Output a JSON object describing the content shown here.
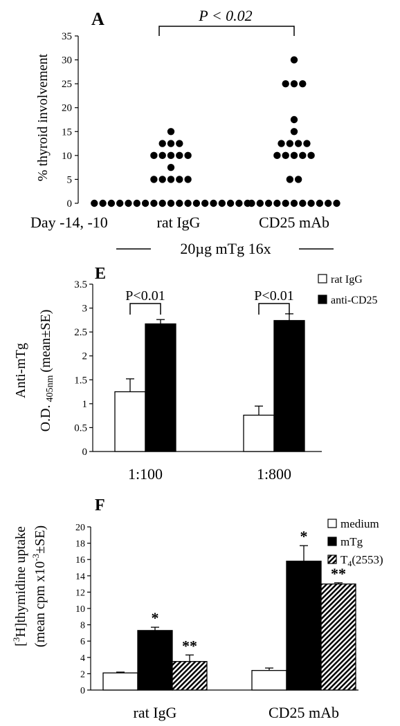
{
  "chart_data": [
    {
      "panel": "A",
      "type": "scatter",
      "ylabel": "% thyroid involvement",
      "ylim": [
        0,
        35
      ],
      "yticks": [
        0,
        5,
        10,
        15,
        20,
        25,
        30,
        35
      ],
      "row_label": "Day -14, -10",
      "categories": [
        "rat IgG",
        "CD25 mAb"
      ],
      "bracket_label": "P < 0.02",
      "treatment_label": "20µg mTg 16x",
      "series": [
        {
          "name": "rat IgG",
          "values": [
            0,
            0,
            0,
            0,
            0,
            0,
            0,
            0,
            0,
            0,
            0,
            0,
            0,
            0,
            0,
            0,
            0,
            0,
            0,
            5,
            5,
            5,
            5,
            5,
            7.5,
            10,
            10,
            10,
            10,
            10,
            12.5,
            12.5,
            12.5,
            15
          ]
        },
        {
          "name": "CD25 mAb",
          "values": [
            0,
            0,
            0,
            0,
            0,
            0,
            0,
            0,
            0,
            0,
            0,
            5,
            5,
            10,
            10,
            10,
            10,
            10,
            12.5,
            12.5,
            12.5,
            12.5,
            15,
            17.5,
            25,
            25,
            25,
            30
          ]
        }
      ]
    },
    {
      "panel": "E",
      "type": "bar",
      "ylabel_line1": "Anti-mTg",
      "ylabel_line2_pre": "O.D.",
      "ylabel_line2_sub": "405nm",
      "ylabel_line2_post": "(mean±SE)",
      "ylim": [
        0,
        3.5
      ],
      "yticks": [
        "0",
        "0.5",
        "1",
        "1.5",
        "2",
        "2.5",
        "3",
        "3.5"
      ],
      "categories": [
        "1:100",
        "1:800"
      ],
      "series": [
        {
          "name": "rat IgG",
          "color": "#ffffff",
          "values": [
            1.25,
            0.76
          ],
          "errors": [
            0.27,
            0.19
          ]
        },
        {
          "name": "anti-CD25",
          "color": "#000000",
          "values": [
            2.67,
            2.74
          ],
          "errors": [
            0.09,
            0.14
          ]
        }
      ],
      "annotations": [
        "P<0.01",
        "P<0.01"
      ],
      "legend": "top-right"
    },
    {
      "panel": "F",
      "type": "bar",
      "ylabel_line1_pre": "[",
      "ylabel_line1_sup": "3",
      "ylabel_line1_post": "H]thymidine uptake",
      "ylabel_line2_pre": "(mean cpm x10",
      "ylabel_line2_sup": "-3",
      "ylabel_line2_post": "±SE)",
      "ylim": [
        0,
        20
      ],
      "yticks": [
        "0",
        "2",
        "4",
        "6",
        "8",
        "10",
        "12",
        "14",
        "16",
        "18",
        "20"
      ],
      "categories": [
        "rat IgG",
        "CD25 mAb"
      ],
      "series": [
        {
          "name": "medium",
          "pattern": "white",
          "values": [
            2.1,
            2.4
          ],
          "errors": [
            0.1,
            0.3
          ],
          "marks": [
            "",
            ""
          ]
        },
        {
          "name": "mTg",
          "pattern": "black",
          "values": [
            7.3,
            15.8
          ],
          "errors": [
            0.4,
            1.9
          ],
          "marks": [
            "*",
            "*"
          ]
        },
        {
          "name_pre": "T",
          "name_sub": "4",
          "name_post": "(2553)",
          "pattern": "hatch",
          "values": [
            3.5,
            13.0
          ],
          "errors": [
            0.8,
            0.15
          ],
          "marks": [
            "**",
            "**"
          ]
        }
      ],
      "legend": "top-right"
    }
  ]
}
